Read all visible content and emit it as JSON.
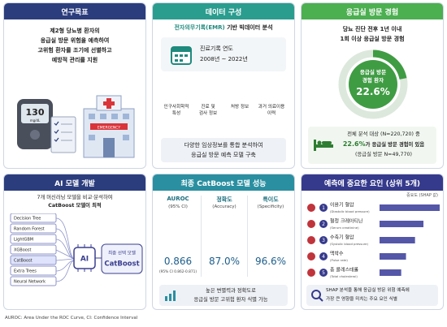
{
  "goal": {
    "title": "연구목표",
    "lines": [
      "제2형 당뇨병 환자의",
      "응급실 방문 위험을 예측하여",
      "고위험 환자를 조기에 선별하고",
      "예방적 관리를 지원"
    ],
    "meter": "130",
    "meter_unit": "mg/dL",
    "hospital_sign": "EMERGENCY"
  },
  "data": {
    "title": "데이터 구성",
    "subtitle_em": "전자의무기록(EMR)",
    "subtitle": "기반 빅데이터 분석",
    "period_label": "진료기록 연도",
    "period": "2008년 ~ 2022년",
    "items": [
      [
        "인구사회학적",
        "특성"
      ],
      [
        "진료 및",
        "검사 정보"
      ],
      [
        "처방 정보"
      ],
      [
        "과거 의료이용",
        "이력"
      ]
    ],
    "note": [
      "다양한 임상정보를 통합 분석하여",
      "응급실 방문 예측 모델 구축"
    ]
  },
  "er": {
    "title": "응급실 방문 경험",
    "lines": [
      "당뇨 진단 전후 1년 이내",
      "1회 이상 응급실 방문 경험"
    ],
    "ring_label": [
      "응급실 방문",
      "경험 환자"
    ],
    "ring_value": "22.6%",
    "summary_1": "전체 분석 대상 (N=220,720) 중",
    "summary_em": "22.6%",
    "summary_2": "가 응급실 방문 경험이 있음",
    "summary_3": "(응급실 방문 N=49,770)"
  },
  "ai": {
    "title": "AI 모델 개발",
    "lines": [
      "7개 머신러닝 모델을 비교·분석하여",
      "CatBoost 모델이 최적"
    ],
    "models": [
      "Decision Tree",
      "Random Forest",
      "LightGBM",
      "XGBoost",
      "CatBoost",
      "Extra Trees",
      "Neural Network"
    ],
    "chip": "AI",
    "selected_label": "최종 선택 모델",
    "selected": "CatBoost"
  },
  "perf": {
    "title": "최종 CatBoost 모델 성능",
    "metrics": [
      {
        "name": "AUROC",
        "sub": "(95% CI)",
        "value": "0.866",
        "ci": "(95% CI 0.862-0.871)"
      },
      {
        "name": "정확도",
        "sub": "(Accuracy)",
        "value": "87.0%"
      },
      {
        "name": "특이도",
        "sub": "(Specificity)",
        "value": "96.6%"
      }
    ],
    "note": [
      "높은 변별력과 정확도로",
      "응급실 방문 고위험 환자 식별 가능"
    ]
  },
  "factors": {
    "title": "예측에 중요한 요인 (상위 5개)",
    "axis_label": "중요도 (SHAP 값)",
    "xlim": [
      0,
      1
    ],
    "items": [
      {
        "rank": "1",
        "name": "이완기 혈압",
        "en": "(Diastolic blood pressure)",
        "value": 1.0
      },
      {
        "rank": "2",
        "name": "혈청 크레아티닌",
        "en": "(Serum creatinine)",
        "value": 0.73
      },
      {
        "rank": "3",
        "name": "수축기 혈압",
        "en": "(Systolic blood pressure)",
        "value": 0.59
      },
      {
        "rank": "4",
        "name": "맥박수",
        "en": "(Pulse rate)",
        "value": 0.44
      },
      {
        "rank": "5",
        "name": "총 콜레스테롤",
        "en": "(Total cholesterol)",
        "value": 0.36
      }
    ],
    "note": [
      "SHAP 분석을 통해 응급실 방문 위험 예측에",
      "가장 큰 영향을 미치는 주요 요인 식별"
    ]
  },
  "footer": "AUROC: Area Under the ROC Curve, CI: Confidence Interval"
}
